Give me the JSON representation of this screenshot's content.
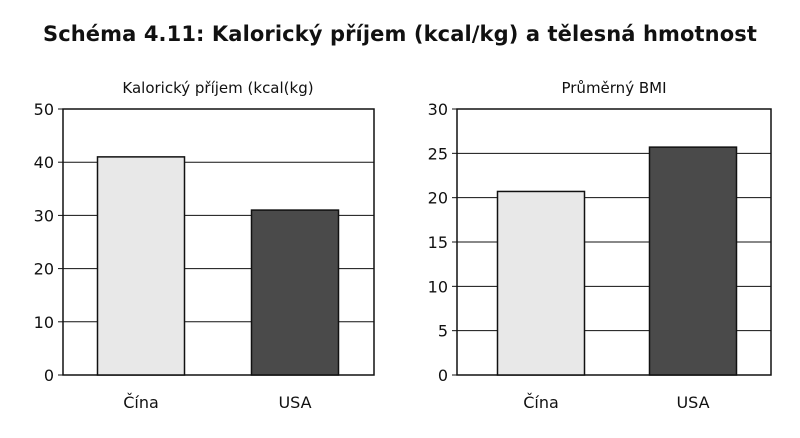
{
  "title": "Schéma 4.11: Kalorický příjem (kcal/kg) a tělesná hmotnost",
  "colors": {
    "light_bar": "#e8e8e8",
    "dark_bar": "#4a4a4a",
    "axis": "#111111"
  },
  "chart_data": [
    {
      "type": "bar",
      "title": "Kalorický příjem (kcal(kg)",
      "categories": [
        "Čína",
        "USA"
      ],
      "values": [
        41,
        31
      ],
      "ylim": [
        0,
        50
      ],
      "yticks": [
        "0",
        "10",
        "20",
        "30",
        "40",
        "50"
      ],
      "grid": true,
      "legend": "none"
    },
    {
      "type": "bar",
      "title": "Průměrný BMI",
      "categories": [
        "Čína",
        "USA"
      ],
      "values": [
        20.7,
        25.7
      ],
      "ylim": [
        0,
        30
      ],
      "yticks": [
        "0",
        "5",
        "10",
        "15",
        "20",
        "25",
        "30"
      ],
      "grid": true,
      "legend": "none"
    }
  ]
}
